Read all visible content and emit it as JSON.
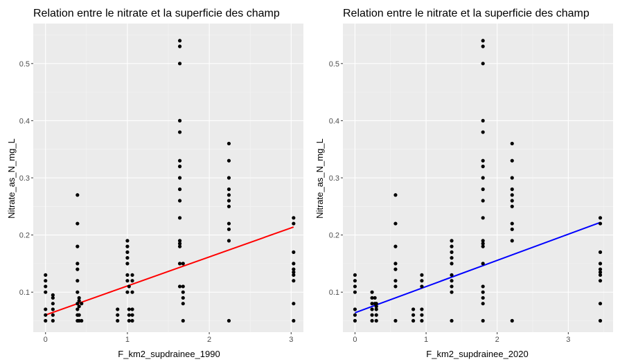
{
  "chart_data": [
    {
      "type": "scatter",
      "title": "Relation entre le nitrate et la superficie des champ",
      "xlabel": "F_km2_supdrainee_1990",
      "ylabel": "Nitrate_as_N_mg_L",
      "xlim": [
        -0.15,
        3.15
      ],
      "ylim": [
        0.03,
        0.57
      ],
      "xticks": [
        0,
        1,
        2,
        3
      ],
      "xtick_labels": [
        "0",
        "1",
        "2",
        "3"
      ],
      "yticks": [
        0.1,
        0.2,
        0.3,
        0.4,
        0.5
      ],
      "ytick_labels": [
        "0.1",
        "0.2",
        "0.3",
        "0.4",
        "0.5"
      ],
      "grid": true,
      "points": [
        {
          "x": 0.0,
          "y": 0.05
        },
        {
          "x": 0.0,
          "y": 0.06
        },
        {
          "x": 0.0,
          "y": 0.07
        },
        {
          "x": 0.0,
          "y": 0.1
        },
        {
          "x": 0.0,
          "y": 0.11
        },
        {
          "x": 0.0,
          "y": 0.12
        },
        {
          "x": 0.0,
          "y": 0.13
        },
        {
          "x": 0.09,
          "y": 0.05
        },
        {
          "x": 0.09,
          "y": 0.06
        },
        {
          "x": 0.09,
          "y": 0.07
        },
        {
          "x": 0.09,
          "y": 0.08
        },
        {
          "x": 0.09,
          "y": 0.09
        },
        {
          "x": 0.09,
          "y": 0.095
        },
        {
          "x": 0.39,
          "y": 0.05
        },
        {
          "x": 0.39,
          "y": 0.06
        },
        {
          "x": 0.39,
          "y": 0.07
        },
        {
          "x": 0.39,
          "y": 0.08
        },
        {
          "x": 0.39,
          "y": 0.1
        },
        {
          "x": 0.39,
          "y": 0.12
        },
        {
          "x": 0.39,
          "y": 0.14
        },
        {
          "x": 0.39,
          "y": 0.15
        },
        {
          "x": 0.39,
          "y": 0.18
        },
        {
          "x": 0.39,
          "y": 0.22
        },
        {
          "x": 0.39,
          "y": 0.27
        },
        {
          "x": 0.41,
          "y": 0.05
        },
        {
          "x": 0.41,
          "y": 0.06
        },
        {
          "x": 0.41,
          "y": 0.075
        },
        {
          "x": 0.41,
          "y": 0.085
        },
        {
          "x": 0.41,
          "y": 0.09
        },
        {
          "x": 0.44,
          "y": 0.05
        },
        {
          "x": 0.44,
          "y": 0.08
        },
        {
          "x": 0.88,
          "y": 0.05
        },
        {
          "x": 0.88,
          "y": 0.06
        },
        {
          "x": 0.88,
          "y": 0.07
        },
        {
          "x": 1.0,
          "y": 0.1
        },
        {
          "x": 1.0,
          "y": 0.12
        },
        {
          "x": 1.0,
          "y": 0.13
        },
        {
          "x": 1.0,
          "y": 0.15
        },
        {
          "x": 1.0,
          "y": 0.16
        },
        {
          "x": 1.0,
          "y": 0.17
        },
        {
          "x": 1.0,
          "y": 0.18
        },
        {
          "x": 1.0,
          "y": 0.19
        },
        {
          "x": 1.02,
          "y": 0.05
        },
        {
          "x": 1.02,
          "y": 0.06
        },
        {
          "x": 1.02,
          "y": 0.07
        },
        {
          "x": 1.02,
          "y": 0.11
        },
        {
          "x": 1.06,
          "y": 0.05
        },
        {
          "x": 1.06,
          "y": 0.06
        },
        {
          "x": 1.06,
          "y": 0.07
        },
        {
          "x": 1.06,
          "y": 0.1
        },
        {
          "x": 1.06,
          "y": 0.12
        },
        {
          "x": 1.06,
          "y": 0.13
        },
        {
          "x": 1.64,
          "y": 0.11
        },
        {
          "x": 1.64,
          "y": 0.15
        },
        {
          "x": 1.64,
          "y": 0.18
        },
        {
          "x": 1.64,
          "y": 0.185
        },
        {
          "x": 1.64,
          "y": 0.19
        },
        {
          "x": 1.64,
          "y": 0.23
        },
        {
          "x": 1.64,
          "y": 0.26
        },
        {
          "x": 1.64,
          "y": 0.28
        },
        {
          "x": 1.64,
          "y": 0.3
        },
        {
          "x": 1.64,
          "y": 0.32
        },
        {
          "x": 1.64,
          "y": 0.33
        },
        {
          "x": 1.64,
          "y": 0.38
        },
        {
          "x": 1.64,
          "y": 0.4
        },
        {
          "x": 1.64,
          "y": 0.5
        },
        {
          "x": 1.64,
          "y": 0.53
        },
        {
          "x": 1.64,
          "y": 0.54
        },
        {
          "x": 1.68,
          "y": 0.05
        },
        {
          "x": 1.68,
          "y": 0.08
        },
        {
          "x": 1.68,
          "y": 0.09
        },
        {
          "x": 1.68,
          "y": 0.1
        },
        {
          "x": 1.68,
          "y": 0.11
        },
        {
          "x": 1.68,
          "y": 0.15
        },
        {
          "x": 2.24,
          "y": 0.05
        },
        {
          "x": 2.24,
          "y": 0.19
        },
        {
          "x": 2.24,
          "y": 0.21
        },
        {
          "x": 2.24,
          "y": 0.22
        },
        {
          "x": 2.24,
          "y": 0.25
        },
        {
          "x": 2.24,
          "y": 0.26
        },
        {
          "x": 2.24,
          "y": 0.27
        },
        {
          "x": 2.24,
          "y": 0.28
        },
        {
          "x": 2.24,
          "y": 0.3
        },
        {
          "x": 2.24,
          "y": 0.33
        },
        {
          "x": 2.24,
          "y": 0.36
        },
        {
          "x": 3.03,
          "y": 0.05
        },
        {
          "x": 3.03,
          "y": 0.08
        },
        {
          "x": 3.03,
          "y": 0.12
        },
        {
          "x": 3.03,
          "y": 0.13
        },
        {
          "x": 3.03,
          "y": 0.135
        },
        {
          "x": 3.03,
          "y": 0.14
        },
        {
          "x": 3.03,
          "y": 0.15
        },
        {
          "x": 3.03,
          "y": 0.17
        },
        {
          "x": 3.03,
          "y": 0.22
        },
        {
          "x": 3.03,
          "y": 0.23
        }
      ],
      "trendline": {
        "color": "#ff0000",
        "x": [
          0.0,
          3.03
        ],
        "y": [
          0.06,
          0.214
        ]
      }
    },
    {
      "type": "scatter",
      "title": "Relation entre le nitrate et la superficie des champ",
      "xlabel": "F_km2_supdrainee_2020",
      "ylabel": "Nitrate_as_N_mg_L",
      "xlim": [
        -0.17,
        3.63
      ],
      "ylim": [
        0.03,
        0.57
      ],
      "xticks": [
        0,
        1,
        2,
        3
      ],
      "xtick_labels": [
        "0",
        "1",
        "2",
        "3"
      ],
      "yticks": [
        0.1,
        0.2,
        0.3,
        0.4,
        0.5
      ],
      "ytick_labels": [
        "0.1",
        "0.2",
        "0.3",
        "0.4",
        "0.5"
      ],
      "grid": true,
      "points": [
        {
          "x": 0.0,
          "y": 0.05
        },
        {
          "x": 0.0,
          "y": 0.06
        },
        {
          "x": 0.0,
          "y": 0.07
        },
        {
          "x": 0.0,
          "y": 0.1
        },
        {
          "x": 0.0,
          "y": 0.11
        },
        {
          "x": 0.0,
          "y": 0.12
        },
        {
          "x": 0.0,
          "y": 0.13
        },
        {
          "x": 0.24,
          "y": 0.05
        },
        {
          "x": 0.24,
          "y": 0.06
        },
        {
          "x": 0.24,
          "y": 0.07
        },
        {
          "x": 0.24,
          "y": 0.08
        },
        {
          "x": 0.24,
          "y": 0.09
        },
        {
          "x": 0.24,
          "y": 0.1
        },
        {
          "x": 0.28,
          "y": 0.08
        },
        {
          "x": 0.28,
          "y": 0.09
        },
        {
          "x": 0.3,
          "y": 0.05
        },
        {
          "x": 0.3,
          "y": 0.06
        },
        {
          "x": 0.3,
          "y": 0.07
        },
        {
          "x": 0.3,
          "y": 0.075
        },
        {
          "x": 0.3,
          "y": 0.08
        },
        {
          "x": 0.57,
          "y": 0.05
        },
        {
          "x": 0.57,
          "y": 0.11
        },
        {
          "x": 0.57,
          "y": 0.12
        },
        {
          "x": 0.57,
          "y": 0.14
        },
        {
          "x": 0.57,
          "y": 0.15
        },
        {
          "x": 0.57,
          "y": 0.18
        },
        {
          "x": 0.57,
          "y": 0.22
        },
        {
          "x": 0.57,
          "y": 0.27
        },
        {
          "x": 0.82,
          "y": 0.05
        },
        {
          "x": 0.82,
          "y": 0.06
        },
        {
          "x": 0.82,
          "y": 0.07
        },
        {
          "x": 0.94,
          "y": 0.05
        },
        {
          "x": 0.94,
          "y": 0.06
        },
        {
          "x": 0.94,
          "y": 0.07
        },
        {
          "x": 0.94,
          "y": 0.11
        },
        {
          "x": 0.94,
          "y": 0.12
        },
        {
          "x": 0.94,
          "y": 0.13
        },
        {
          "x": 1.36,
          "y": 0.05
        },
        {
          "x": 1.36,
          "y": 0.1
        },
        {
          "x": 1.36,
          "y": 0.11
        },
        {
          "x": 1.36,
          "y": 0.12
        },
        {
          "x": 1.36,
          "y": 0.13
        },
        {
          "x": 1.36,
          "y": 0.15
        },
        {
          "x": 1.36,
          "y": 0.16
        },
        {
          "x": 1.36,
          "y": 0.17
        },
        {
          "x": 1.36,
          "y": 0.18
        },
        {
          "x": 1.36,
          "y": 0.19
        },
        {
          "x": 1.8,
          "y": 0.05
        },
        {
          "x": 1.8,
          "y": 0.08
        },
        {
          "x": 1.8,
          "y": 0.09
        },
        {
          "x": 1.8,
          "y": 0.1
        },
        {
          "x": 1.8,
          "y": 0.11
        },
        {
          "x": 1.8,
          "y": 0.15
        },
        {
          "x": 1.8,
          "y": 0.18
        },
        {
          "x": 1.8,
          "y": 0.185
        },
        {
          "x": 1.8,
          "y": 0.19
        },
        {
          "x": 1.8,
          "y": 0.23
        },
        {
          "x": 1.8,
          "y": 0.26
        },
        {
          "x": 1.8,
          "y": 0.28
        },
        {
          "x": 1.8,
          "y": 0.3
        },
        {
          "x": 1.8,
          "y": 0.32
        },
        {
          "x": 1.8,
          "y": 0.33
        },
        {
          "x": 1.8,
          "y": 0.38
        },
        {
          "x": 1.8,
          "y": 0.4
        },
        {
          "x": 1.8,
          "y": 0.5
        },
        {
          "x": 1.8,
          "y": 0.53
        },
        {
          "x": 1.8,
          "y": 0.54
        },
        {
          "x": 2.21,
          "y": 0.05
        },
        {
          "x": 2.21,
          "y": 0.19
        },
        {
          "x": 2.21,
          "y": 0.21
        },
        {
          "x": 2.21,
          "y": 0.22
        },
        {
          "x": 2.21,
          "y": 0.25
        },
        {
          "x": 2.21,
          "y": 0.26
        },
        {
          "x": 2.21,
          "y": 0.27
        },
        {
          "x": 2.21,
          "y": 0.28
        },
        {
          "x": 2.21,
          "y": 0.3
        },
        {
          "x": 2.21,
          "y": 0.33
        },
        {
          "x": 2.21,
          "y": 0.36
        },
        {
          "x": 3.45,
          "y": 0.05
        },
        {
          "x": 3.45,
          "y": 0.08
        },
        {
          "x": 3.45,
          "y": 0.12
        },
        {
          "x": 3.45,
          "y": 0.13
        },
        {
          "x": 3.45,
          "y": 0.135
        },
        {
          "x": 3.45,
          "y": 0.14
        },
        {
          "x": 3.45,
          "y": 0.15
        },
        {
          "x": 3.45,
          "y": 0.17
        },
        {
          "x": 3.45,
          "y": 0.22
        },
        {
          "x": 3.45,
          "y": 0.23
        }
      ],
      "trendline": {
        "color": "#0000ff",
        "x": [
          0.0,
          3.45
        ],
        "y": [
          0.064,
          0.222
        ]
      }
    }
  ]
}
